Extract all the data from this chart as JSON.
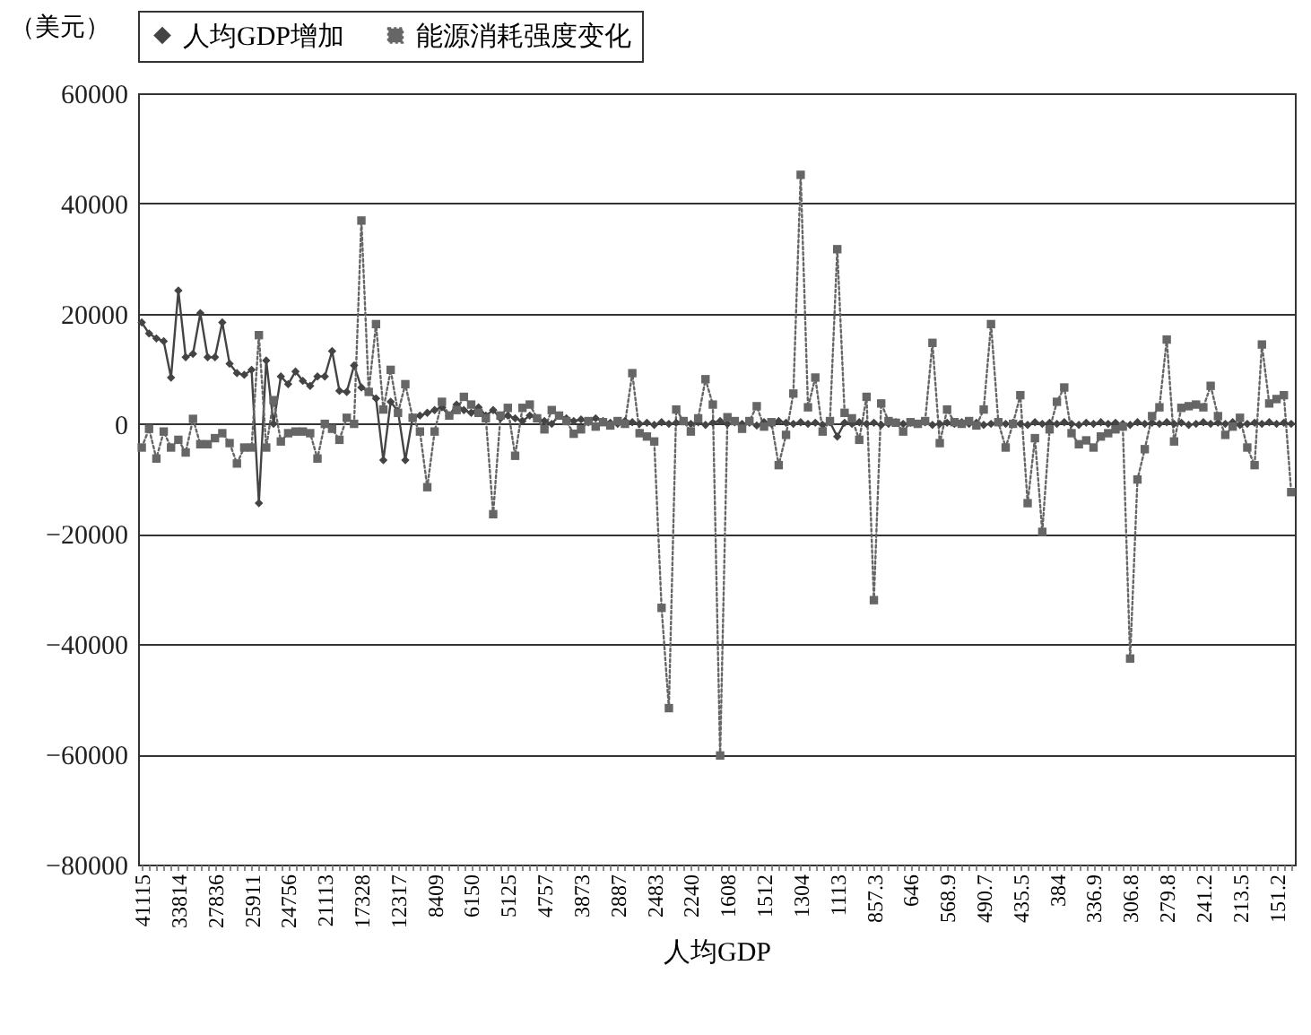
{
  "chart_data": {
    "type": "line",
    "xlabel": "人均GDP",
    "ylabel": "（美元）",
    "categories": [
      "41115",
      null,
      null,
      null,
      null,
      "33814",
      null,
      null,
      null,
      null,
      "27836",
      null,
      null,
      null,
      null,
      "25911",
      null,
      null,
      null,
      null,
      "24756",
      null,
      null,
      null,
      null,
      "21113",
      null,
      null,
      null,
      null,
      "17328",
      null,
      null,
      null,
      null,
      "12317",
      null,
      null,
      null,
      null,
      "8409",
      null,
      null,
      null,
      null,
      "6150",
      null,
      null,
      null,
      null,
      "5125",
      null,
      null,
      null,
      null,
      "4757",
      null,
      null,
      null,
      null,
      "3873",
      null,
      null,
      null,
      null,
      "2887",
      null,
      null,
      null,
      null,
      "2483",
      null,
      null,
      null,
      null,
      "2240",
      null,
      null,
      null,
      null,
      "1608",
      null,
      null,
      null,
      null,
      "1512",
      null,
      null,
      null,
      null,
      "1304",
      null,
      null,
      null,
      null,
      "1113",
      null,
      null,
      null,
      null,
      "857.3",
      null,
      null,
      null,
      null,
      "646",
      null,
      null,
      null,
      null,
      "568.9",
      null,
      null,
      null,
      null,
      "490.7",
      null,
      null,
      null,
      null,
      "435.5",
      null,
      null,
      null,
      null,
      "384",
      null,
      null,
      null,
      null,
      "336.9",
      null,
      null,
      null,
      null,
      "306.8",
      null,
      null,
      null,
      null,
      "279.8",
      null,
      null,
      null,
      null,
      "241.2",
      null,
      null,
      null,
      null,
      "213.5",
      null,
      null,
      null,
      null,
      "151.2",
      null,
      null
    ],
    "series": [
      {
        "name": "人均GDP增加",
        "color": "#444444",
        "marker": "diamond",
        "line_style": "solid",
        "values": [
          18400,
          16400,
          15500,
          15000,
          8400,
          24200,
          12100,
          12700,
          20100,
          12100,
          12100,
          18400,
          10900,
          9200,
          8900,
          9800,
          -14400,
          11500,
          0,
          8600,
          7200,
          9500,
          7800,
          6900,
          8600,
          8600,
          13200,
          6000,
          5800,
          10600,
          6600,
          5800,
          4600,
          -6600,
          4000,
          2300,
          -6600,
          1100,
          1500,
          2000,
          2500,
          3000,
          1500,
          3500,
          2500,
          2000,
          3000,
          1500,
          2500,
          1000,
          1500,
          1000,
          500,
          1500,
          1000,
          500,
          0,
          1500,
          1000,
          500,
          800,
          300,
          1000,
          500,
          200,
          0,
          500,
          300,
          0,
          200,
          -200,
          300,
          0,
          200,
          500,
          0,
          300,
          -200,
          200,
          500,
          0,
          300,
          0,
          200,
          -300,
          300,
          0,
          500,
          200,
          0,
          300,
          0,
          200,
          -200,
          300,
          -2300,
          200,
          0,
          300,
          0,
          200,
          -200,
          0,
          300,
          0,
          200,
          0,
          300,
          -200,
          0,
          200,
          0,
          300,
          0,
          200,
          -200,
          0,
          300,
          0,
          200,
          0,
          -200,
          300,
          0,
          200,
          0,
          300,
          0,
          -200,
          200,
          0,
          300,
          0,
          200,
          0,
          -200,
          300,
          0,
          200,
          0,
          300,
          0,
          200,
          -200,
          0,
          300,
          0,
          200,
          0,
          300,
          -200,
          0,
          200,
          0,
          300,
          0,
          200,
          0
        ]
      },
      {
        "name": "能源消耗强度变化",
        "color": "#666666",
        "marker": "square",
        "line_style": "dotted",
        "values": [
          -4300,
          -900,
          -6300,
          -1400,
          -4300,
          -2900,
          -5200,
          900,
          -3700,
          -3700,
          -2600,
          -1700,
          -3500,
          -7200,
          -4300,
          -4300,
          16100,
          -4300,
          4300,
          -3200,
          -1700,
          -1400,
          -1400,
          -1700,
          -6300,
          0,
          -900,
          -2900,
          1100,
          0,
          36900,
          5800,
          18100,
          2600,
          9800,
          2000,
          7200,
          1100,
          -1400,
          -11500,
          -1400,
          4000,
          1500,
          2500,
          4900,
          3500,
          2000,
          1000,
          -16400,
          1500,
          2900,
          -5800,
          2900,
          3500,
          1000,
          -1000,
          2500,
          1500,
          500,
          -1800,
          -1000,
          500,
          -500,
          300,
          -300,
          500,
          0,
          9200,
          -1700,
          -2300,
          -3200,
          -33400,
          -51600,
          2600,
          500,
          -1400,
          1000,
          8100,
          3500,
          -60200,
          1200,
          500,
          -900,
          500,
          3200,
          -500,
          300,
          -7500,
          -2000,
          5500,
          45200,
          3000,
          8400,
          -1400,
          500,
          31700,
          2000,
          1000,
          -2900,
          4900,
          -32000,
          3700,
          500,
          200,
          -1400,
          300,
          0,
          500,
          14700,
          -3500,
          2600,
          300,
          0,
          500,
          -300,
          2600,
          18100,
          300,
          -4300,
          0,
          5200,
          -14400,
          -2600,
          -19600,
          -1000,
          4000,
          6600,
          -1700,
          -3700,
          -3000,
          -4300,
          -2300,
          -1700,
          -1000,
          -500,
          -42600,
          -10100,
          -4600,
          1400,
          3000,
          15300,
          -3200,
          2900,
          3200,
          3500,
          3000,
          6900,
          1400,
          -2000,
          -500,
          1100,
          -4300,
          -7500,
          14400,
          3700,
          4500,
          5200,
          -12400
        ]
      }
    ],
    "ylim": [
      -80000,
      60000
    ],
    "yticks": [
      -80000,
      -60000,
      -40000,
      -20000,
      0,
      20000,
      40000,
      60000
    ],
    "grid": "y",
    "legend": "top"
  }
}
